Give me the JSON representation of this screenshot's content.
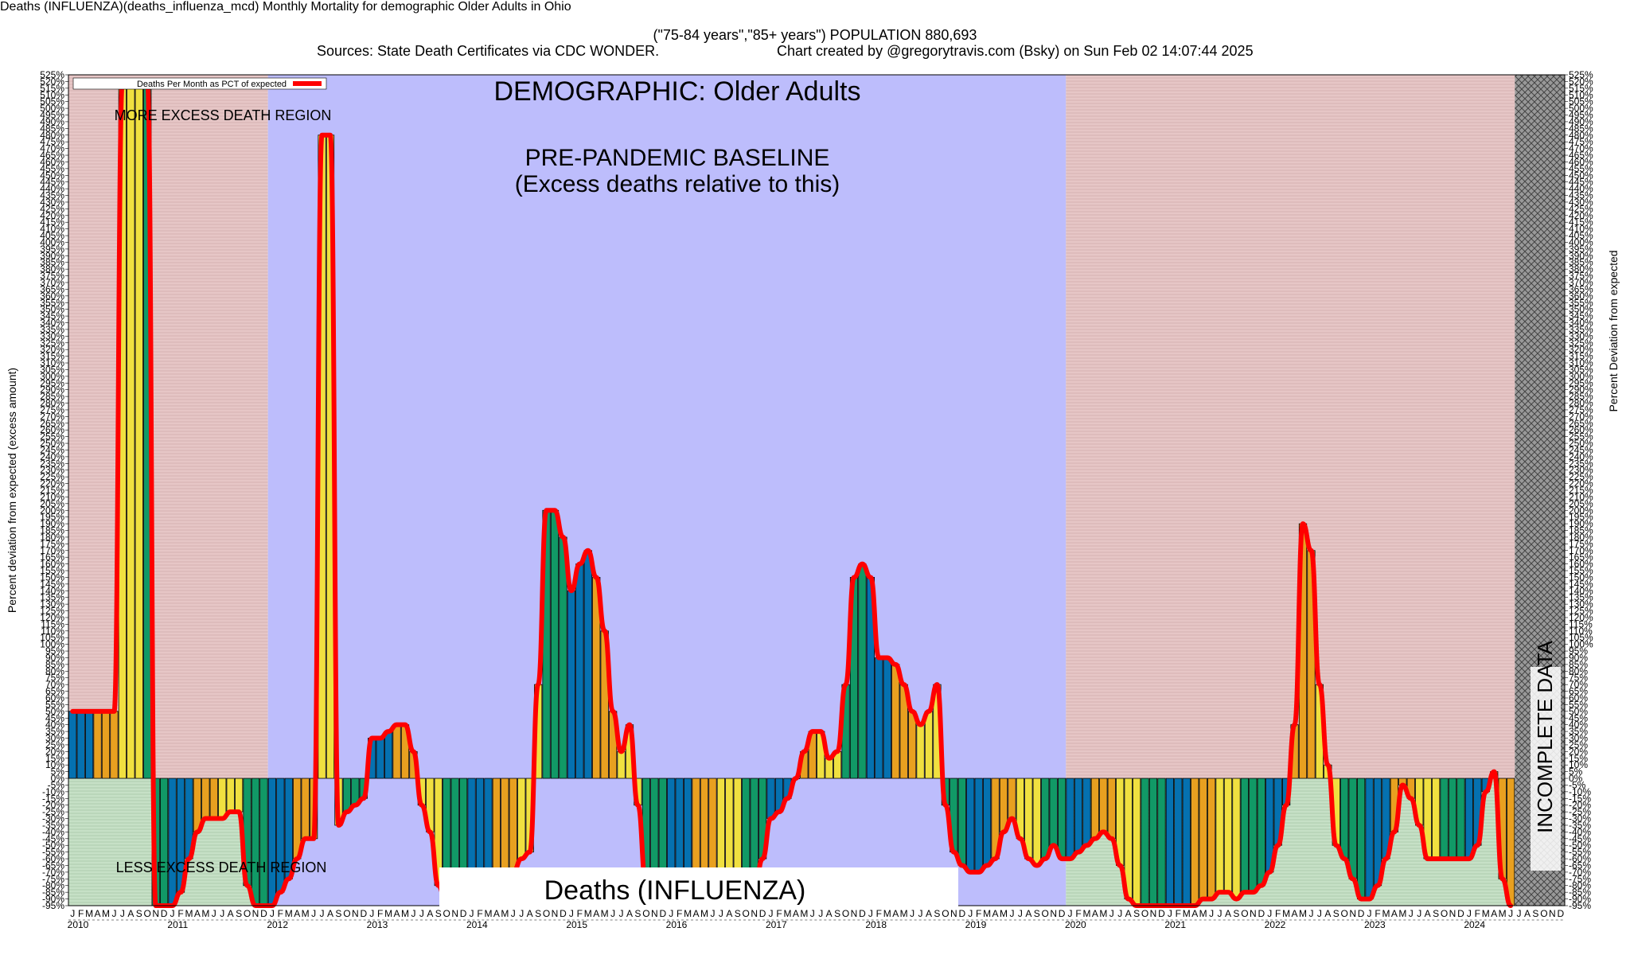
{
  "header": {
    "title": "Deaths (INFLUENZA)(deaths_influenza_mcd) Monthly Mortality for demographic Older Adults in Ohio",
    "subtitle": "(\"75-84 years\",\"85+ years\") POPULATION 880,693",
    "sources": "Sources: State Death Certificates via CDC WONDER.",
    "credit": "Chart created by @gregorytravis.com (Bsky) on Sun Feb 02 14:07:44 2025"
  },
  "chart_data": {
    "type": "bar",
    "ylabel": "Percent deviation from expected (excess amount)",
    "ylabel_right": "Percent Deviation from expected",
    "ylim": [
      -95,
      525
    ],
    "ytick_step": 5,
    "ytick_suffix": "%",
    "legend": {
      "label": "Deaths Per Month as PCT of expected",
      "placement": "top-left",
      "line_color": "#ff0000"
    },
    "annotations": {
      "demographic": "DEMOGRAPHIC: Older Adults",
      "baseline_line1": "PRE-PANDEMIC BASELINE",
      "baseline_line2": "(Excess deaths relative to this)",
      "more_region": "MORE EXCESS DEATH REGION",
      "less_region": "LESS EXCESS DEATH REGION",
      "incomplete": "INCOMPLETE DATA",
      "cause": "Deaths (INFLUENZA)"
    },
    "month_letters": [
      "J",
      "F",
      "M",
      "A",
      "M",
      "J",
      "J",
      "A",
      "S",
      "O",
      "N",
      "D"
    ],
    "years": [
      "2010",
      "2011",
      "2012",
      "2013",
      "2014",
      "2015",
      "2016",
      "2017",
      "2018",
      "2019",
      "2020",
      "2021",
      "2022",
      "2023",
      "2024"
    ],
    "x_start": "2010-01",
    "baseline_period": [
      "2012-01",
      "2019-12"
    ],
    "incomplete_from": "2024-07",
    "colors": {
      "bar_palette": [
        "#0571b0",
        "#e8a020",
        "#f0e040",
        "#119966"
      ],
      "line": "#ff0000",
      "baseline_bg": "#bdbdfc",
      "excess_bg": "#e6c6c6",
      "less_bg": "#c6e0c6"
    },
    "values": [
      50,
      50,
      50,
      50,
      50,
      50,
      520,
      520,
      520,
      520,
      -95,
      -95,
      -95,
      -85,
      -60,
      -40,
      -30,
      -30,
      -30,
      -25,
      -25,
      -80,
      -95,
      -95,
      -95,
      -85,
      -75,
      -60,
      -45,
      -45,
      480,
      480,
      -35,
      -25,
      -20,
      -15,
      30,
      30,
      35,
      40,
      40,
      20,
      -20,
      -40,
      -80,
      -95,
      -95,
      -95,
      -95,
      -95,
      -95,
      -95,
      -85,
      -70,
      -60,
      -55,
      70,
      200,
      200,
      180,
      140,
      160,
      170,
      150,
      110,
      50,
      20,
      40,
      -20,
      -80,
      -95,
      -95,
      -95,
      -95,
      -95,
      -95,
      -95,
      -95,
      -95,
      -95,
      -95,
      -95,
      -85,
      -60,
      -30,
      -25,
      -15,
      0,
      20,
      35,
      35,
      15,
      20,
      70,
      150,
      160,
      150,
      90,
      90,
      85,
      70,
      50,
      40,
      50,
      70,
      -20,
      -55,
      -65,
      -70,
      -70,
      -65,
      -60,
      -40,
      -30,
      -45,
      -60,
      -65,
      -60,
      -50,
      -60,
      -60,
      -55,
      -50,
      -45,
      -40,
      -45,
      -65,
      -90,
      -95,
      -95,
      -95,
      -95,
      -95,
      -95,
      -95,
      -95,
      -90,
      -90,
      -85,
      -85,
      -90,
      -85,
      -85,
      -80,
      -70,
      -50,
      -20,
      40,
      190,
      170,
      70,
      10,
      -50,
      -60,
      -75,
      -90,
      -90,
      -80,
      -60,
      -40,
      -5,
      -15,
      -35,
      -60,
      -60,
      -60,
      -60,
      -60,
      -60,
      -50,
      -10,
      5,
      -75,
      -95
    ]
  }
}
